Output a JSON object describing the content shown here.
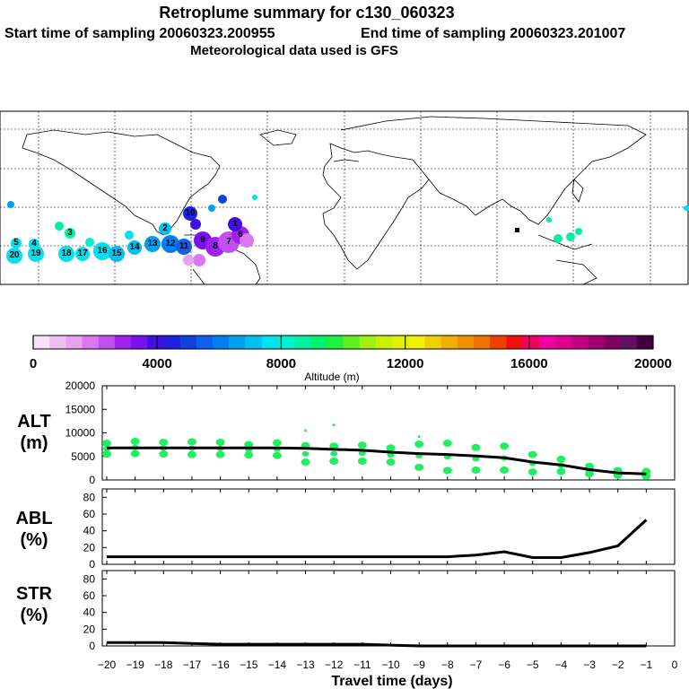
{
  "header": {
    "title": "Retroplume summary for c130_060323",
    "start_label": "Start time of sampling 20060323.200955",
    "end_label": "End time of sampling 20060323.201007",
    "met_label": "Meteorological data used is GFS"
  },
  "colorbar": {
    "title": "Altitude (m)",
    "tick_labels": [
      "0",
      "4000",
      "8000",
      "12000",
      "16000",
      "20000"
    ],
    "colors": [
      "#f8e0f8",
      "#f0c0f0",
      "#e8a0f0",
      "#d878f0",
      "#c050f0",
      "#a020f0",
      "#7a10f0",
      "#4010e0",
      "#2020e0",
      "#1040e0",
      "#1060f0",
      "#0080f0",
      "#00a0f0",
      "#00c0f0",
      "#00e0f0",
      "#00f0d0",
      "#00f0a0",
      "#00f070",
      "#20f040",
      "#60f020",
      "#a0f010",
      "#c8f000",
      "#e0f000",
      "#f0f000",
      "#f0d000",
      "#f0b000",
      "#f09000",
      "#f07000",
      "#f04000",
      "#f01010",
      "#f00060",
      "#f000a0",
      "#e00090",
      "#c00080",
      "#a00070",
      "#800060",
      "#601060",
      "#400040"
    ]
  },
  "map": {
    "plume_labels": [
      "20",
      "19",
      "18",
      "17",
      "16",
      "15",
      "14",
      "13",
      "12",
      "11",
      "10",
      "9",
      "8",
      "7",
      "6",
      "5",
      "4",
      "3",
      "2",
      "1"
    ]
  },
  "chart_data": [
    {
      "type": "scatter",
      "panel": "ALT",
      "ylabel": "ALT (m)",
      "ylim": [
        0,
        20000
      ],
      "yticks": [
        "20000",
        "15000",
        "10000",
        "5000",
        "0"
      ],
      "x": [
        -20,
        -19,
        -18,
        -17,
        -16,
        -15,
        -14,
        -13,
        -12,
        -11,
        -10,
        -9,
        -8,
        -7,
        -6,
        -5,
        -4,
        -3,
        -2,
        -1
      ],
      "median": [
        6800,
        6800,
        6800,
        6800,
        6800,
        6800,
        6800,
        6700,
        6500,
        6300,
        5900,
        5600,
        5400,
        5100,
        4700,
        3800,
        3200,
        2200,
        1500,
        1300
      ],
      "points": {
        "upper": [
          7800,
          8200,
          8000,
          8100,
          8000,
          7500,
          7900,
          7300,
          7200,
          7400,
          6800,
          7600,
          7800,
          6900,
          7200,
          5400,
          4400,
          2900,
          2000,
          1800
        ],
        "lower": [
          5500,
          5600,
          5500,
          5400,
          5400,
          5300,
          5200,
          3800,
          4000,
          4000,
          3800,
          2700,
          2000,
          2100,
          2100,
          1700,
          1800,
          1300,
          1000,
          800
        ],
        "outliers": [
          {
            "x": -13,
            "y": 10500
          },
          {
            "x": -12,
            "y": 11700
          },
          {
            "x": -9,
            "y": 9200
          }
        ]
      }
    },
    {
      "type": "line",
      "panel": "ABL",
      "ylabel": "ABL (%)",
      "ylim": [
        0,
        90
      ],
      "yticks": [
        "80",
        "60",
        "40",
        "20",
        "0"
      ],
      "x": [
        -20,
        -19,
        -18,
        -17,
        -16,
        -15,
        -14,
        -13,
        -12,
        -11,
        -10,
        -9,
        -8,
        -7,
        -6,
        -5,
        -4,
        -3,
        -2,
        -1
      ],
      "values": [
        9,
        9,
        9,
        9,
        9,
        9,
        9,
        9,
        9,
        9,
        9,
        9,
        9,
        11,
        15,
        8,
        8,
        14,
        22,
        53
      ]
    },
    {
      "type": "line",
      "panel": "STR",
      "ylabel": "STR (%)",
      "ylim": [
        0,
        90
      ],
      "yticks": [
        "80",
        "60",
        "40",
        "20",
        "0"
      ],
      "x": [
        -20,
        -19,
        -18,
        -17,
        -16,
        -15,
        -14,
        -13,
        -12,
        -11,
        -10,
        -9,
        -8,
        -7,
        -6,
        -5,
        -4,
        -3,
        -2,
        -1
      ],
      "values": [
        4,
        4,
        4,
        3,
        2,
        2,
        2,
        2,
        2,
        2,
        1,
        0,
        0,
        0,
        0,
        0,
        0,
        0,
        0,
        0
      ],
      "xlabel": "Travel time (days)",
      "xticks": [
        "−20",
        "−19",
        "−18",
        "−17",
        "−16",
        "−15",
        "−14",
        "−13",
        "−12",
        "−11",
        "−10",
        "−9",
        "−8",
        "−7",
        "−6",
        "−5",
        "−4",
        "−3",
        "−2",
        "−1",
        "0"
      ]
    }
  ],
  "labels": {
    "alt_top": "ALT",
    "alt_bot": "(m)",
    "abl_top": "ABL",
    "abl_bot": "(%)",
    "str_top": "STR",
    "str_bot": "(%)"
  }
}
